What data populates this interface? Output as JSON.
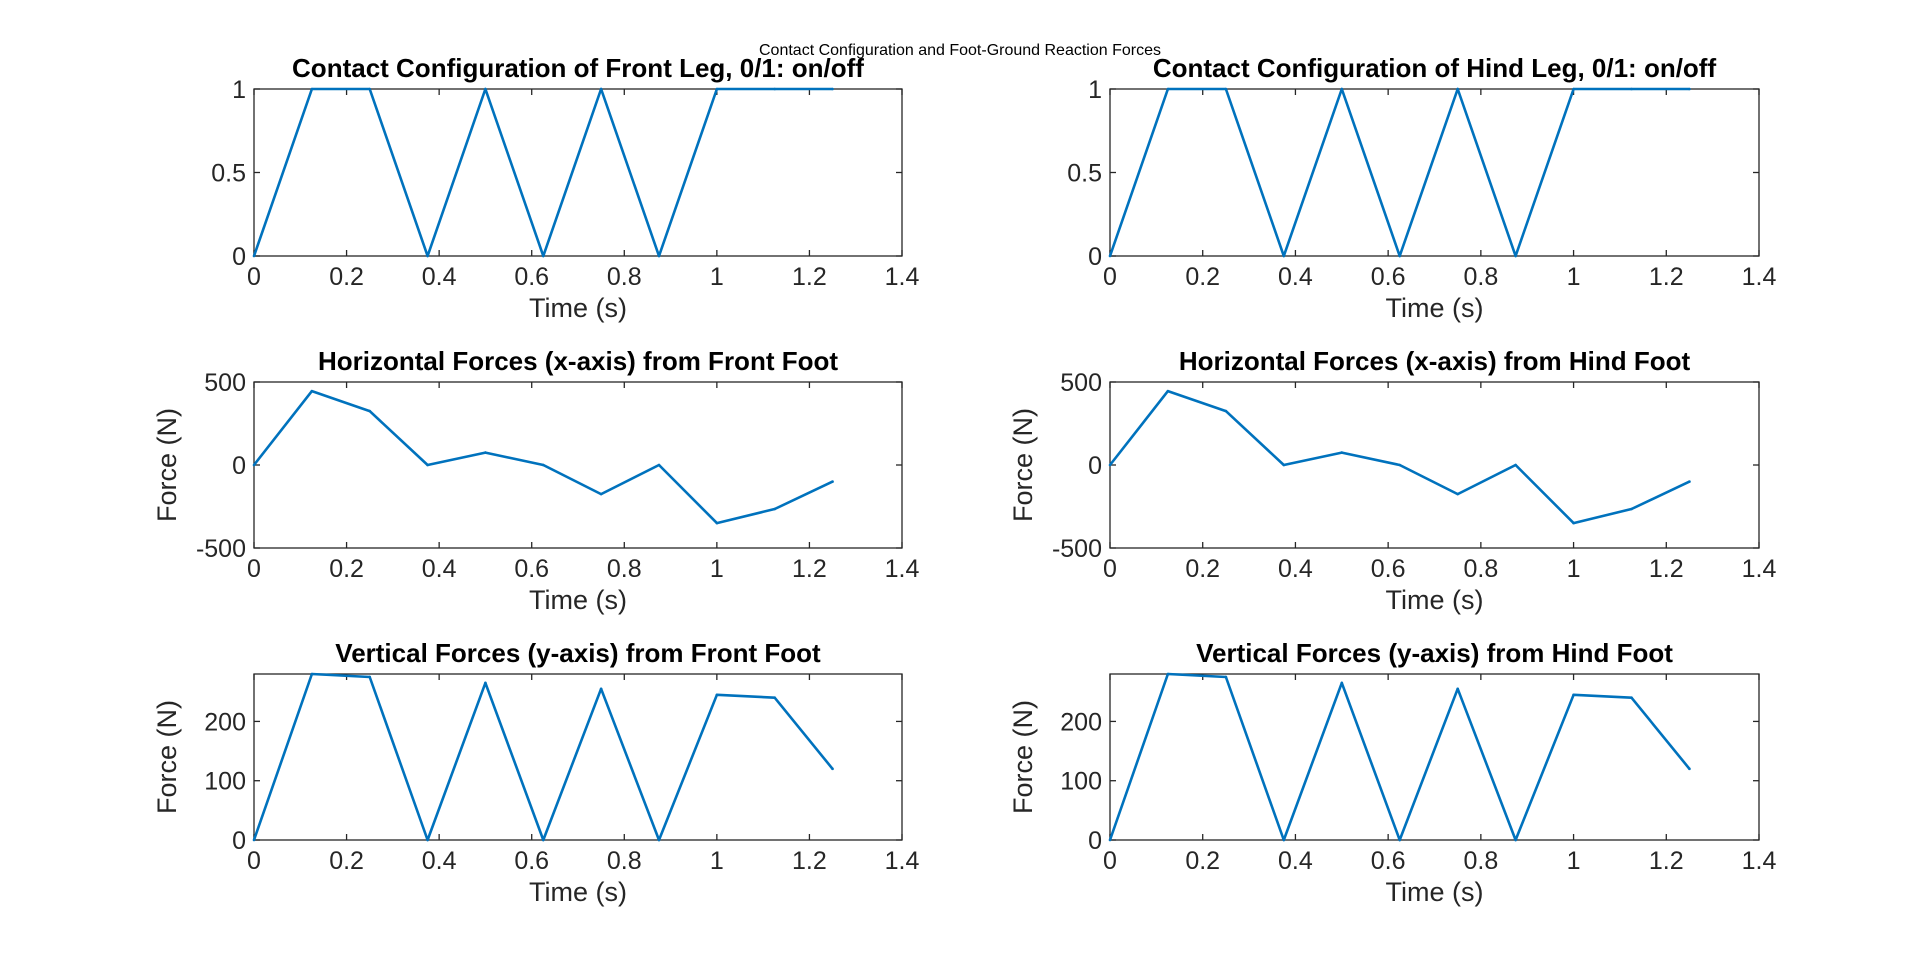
{
  "figure_title": "Contact Configuration and Foot-Ground Reaction Forces",
  "colors": {
    "series": "#0072BD",
    "axes": "#262626"
  },
  "chart_data": [
    {
      "type": "line",
      "title": "Contact Configuration of Front Leg, 0/1: on/off",
      "xlabel": "Time (s)",
      "ylabel": "",
      "xlim": [
        0,
        1.4
      ],
      "ylim": [
        0,
        1
      ],
      "xticks": [
        0,
        0.2,
        0.4,
        0.6,
        0.8,
        1,
        1.2,
        1.4
      ],
      "xtick_labels": [
        "0",
        "0.2",
        "0.4",
        "0.6",
        "0.8",
        "1",
        "1.2",
        "1.4"
      ],
      "yticks": [
        0,
        0.5,
        1
      ],
      "ytick_labels": [
        "0",
        "0.5",
        "1"
      ],
      "grid": false,
      "x": [
        0,
        0.125,
        0.25,
        0.375,
        0.5,
        0.625,
        0.75,
        0.875,
        1,
        1.125,
        1.25
      ],
      "y": [
        0,
        1,
        1,
        0,
        1,
        0,
        1,
        0,
        1,
        1,
        1
      ]
    },
    {
      "type": "line",
      "title": "Contact Configuration of Hind Leg, 0/1: on/off",
      "xlabel": "Time (s)",
      "ylabel": "",
      "xlim": [
        0,
        1.4
      ],
      "ylim": [
        0,
        1
      ],
      "xticks": [
        0,
        0.2,
        0.4,
        0.6,
        0.8,
        1,
        1.2,
        1.4
      ],
      "xtick_labels": [
        "0",
        "0.2",
        "0.4",
        "0.6",
        "0.8",
        "1",
        "1.2",
        "1.4"
      ],
      "yticks": [
        0,
        0.5,
        1
      ],
      "ytick_labels": [
        "0",
        "0.5",
        "1"
      ],
      "grid": false,
      "x": [
        0,
        0.125,
        0.25,
        0.375,
        0.5,
        0.625,
        0.75,
        0.875,
        1,
        1.125,
        1.25
      ],
      "y": [
        0,
        1,
        1,
        0,
        1,
        0,
        1,
        0,
        1,
        1,
        1
      ]
    },
    {
      "type": "line",
      "title": "Horizontal Forces (x-axis) from Front Foot",
      "xlabel": "Time (s)",
      "ylabel": "Force (N)",
      "xlim": [
        0,
        1.4
      ],
      "ylim": [
        -500,
        500
      ],
      "xticks": [
        0,
        0.2,
        0.4,
        0.6,
        0.8,
        1,
        1.2,
        1.4
      ],
      "xtick_labels": [
        "0",
        "0.2",
        "0.4",
        "0.6",
        "0.8",
        "1",
        "1.2",
        "1.4"
      ],
      "yticks": [
        -500,
        0,
        500
      ],
      "ytick_labels": [
        "-500",
        "0",
        "500"
      ],
      "grid": false,
      "x": [
        0,
        0.125,
        0.25,
        0.375,
        0.5,
        0.625,
        0.75,
        0.875,
        1,
        1.125,
        1.25
      ],
      "y": [
        0,
        445,
        325,
        0,
        75,
        0,
        -175,
        0,
        -350,
        -265,
        -100
      ]
    },
    {
      "type": "line",
      "title": "Horizontal Forces (x-axis) from Hind Foot",
      "xlabel": "Time (s)",
      "ylabel": "Force (N)",
      "xlim": [
        0,
        1.4
      ],
      "ylim": [
        -500,
        500
      ],
      "xticks": [
        0,
        0.2,
        0.4,
        0.6,
        0.8,
        1,
        1.2,
        1.4
      ],
      "xtick_labels": [
        "0",
        "0.2",
        "0.4",
        "0.6",
        "0.8",
        "1",
        "1.2",
        "1.4"
      ],
      "yticks": [
        -500,
        0,
        500
      ],
      "ytick_labels": [
        "-500",
        "0",
        "500"
      ],
      "grid": false,
      "x": [
        0,
        0.125,
        0.25,
        0.375,
        0.5,
        0.625,
        0.75,
        0.875,
        1,
        1.125,
        1.25
      ],
      "y": [
        0,
        445,
        325,
        0,
        75,
        0,
        -175,
        0,
        -350,
        -265,
        -100
      ]
    },
    {
      "type": "line",
      "title": "Vertical Forces (y-axis) from Front Foot",
      "xlabel": "Time (s)",
      "ylabel": "Force (N)",
      "xlim": [
        0,
        1.4
      ],
      "ylim": [
        0,
        280
      ],
      "xticks": [
        0,
        0.2,
        0.4,
        0.6,
        0.8,
        1,
        1.2,
        1.4
      ],
      "xtick_labels": [
        "0",
        "0.2",
        "0.4",
        "0.6",
        "0.8",
        "1",
        "1.2",
        "1.4"
      ],
      "yticks": [
        0,
        100,
        200
      ],
      "ytick_labels": [
        "0",
        "100",
        "200"
      ],
      "grid": false,
      "x": [
        0,
        0.125,
        0.25,
        0.375,
        0.5,
        0.625,
        0.75,
        0.875,
        1,
        1.125,
        1.25
      ],
      "y": [
        0,
        280,
        275,
        0,
        265,
        0,
        255,
        0,
        245,
        240,
        120
      ]
    },
    {
      "type": "line",
      "title": "Vertical Forces (y-axis) from Hind Foot",
      "xlabel": "Time (s)",
      "ylabel": "Force (N)",
      "xlim": [
        0,
        1.4
      ],
      "ylim": [
        0,
        280
      ],
      "xticks": [
        0,
        0.2,
        0.4,
        0.6,
        0.8,
        1,
        1.2,
        1.4
      ],
      "xtick_labels": [
        "0",
        "0.2",
        "0.4",
        "0.6",
        "0.8",
        "1",
        "1.2",
        "1.4"
      ],
      "yticks": [
        0,
        100,
        200
      ],
      "ytick_labels": [
        "0",
        "100",
        "200"
      ],
      "grid": false,
      "x": [
        0,
        0.125,
        0.25,
        0.375,
        0.5,
        0.625,
        0.75,
        0.875,
        1,
        1.125,
        1.25
      ],
      "y": [
        0,
        280,
        275,
        0,
        265,
        0,
        255,
        0,
        245,
        240,
        120
      ]
    }
  ]
}
